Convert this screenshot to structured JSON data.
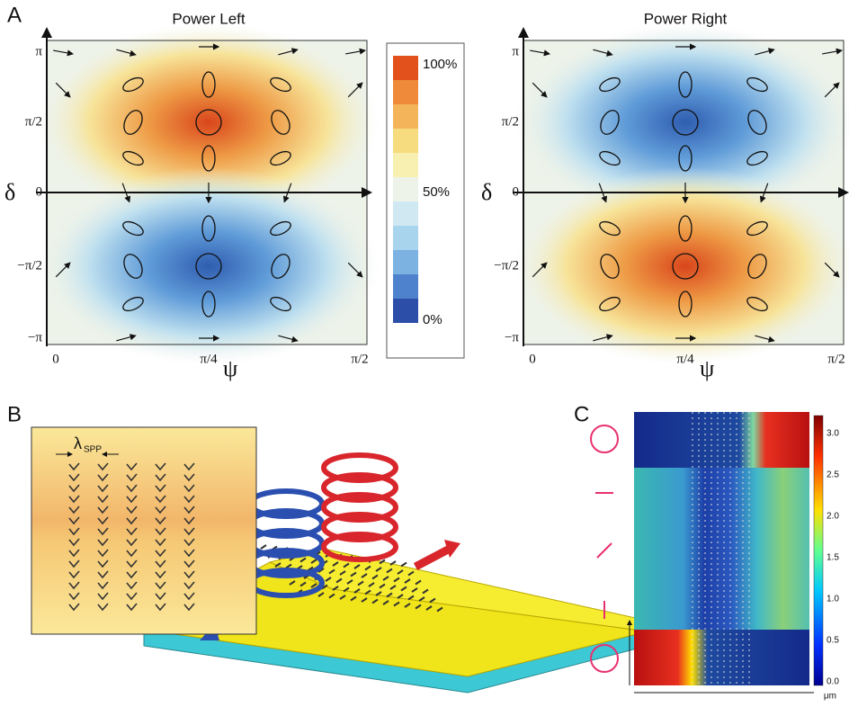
{
  "panel_a": {
    "label": "A",
    "plots": [
      {
        "title": "Power Left"
      },
      {
        "title": "Power Right"
      }
    ],
    "y_axis_label": "δ",
    "x_axis_label": "ψ",
    "yticks": [
      "π",
      "π/2",
      "0",
      "−π/2",
      "−π"
    ],
    "xticks": [
      "0",
      "π/4",
      "π/2"
    ],
    "colorbar_labels": [
      "100%",
      "50%",
      "0%"
    ]
  },
  "panel_b": {
    "label": "B",
    "inset_symbol": "λ",
    "inset_subscript": "SPP"
  },
  "panel_c": {
    "label": "C",
    "colorbar_ticks": [
      "3.0",
      "2.5",
      "2.0",
      "1.5",
      "1.0",
      "0.5",
      "0.0"
    ],
    "x_unit": "μm"
  }
}
